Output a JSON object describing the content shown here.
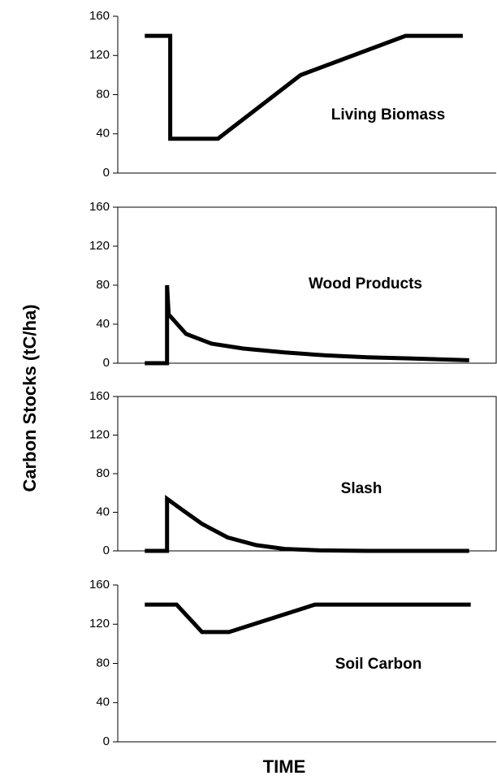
{
  "ylabel": "Carbon Stocks (tC/ha)",
  "xlabel": "TIME",
  "chart_data": [
    {
      "type": "line",
      "annotation": "Living Biomass",
      "color": "#000000",
      "box": false,
      "x": [
        0,
        0.8,
        0.8,
        2.3,
        4.9,
        8.2,
        10
      ],
      "values": [
        140,
        140,
        35,
        35,
        100,
        140,
        140
      ],
      "xlim": [
        -0.85,
        11.05
      ],
      "ylim": [
        0,
        160
      ],
      "yticks": [
        0,
        40,
        80,
        120,
        160
      ]
    },
    {
      "type": "line",
      "annotation": "Wood Products",
      "color": "#000000",
      "box": true,
      "x": [
        0,
        0.7,
        0.7,
        0.75,
        1.3,
        2.1,
        3.1,
        4.4,
        5.7,
        7,
        8.2,
        10.2
      ],
      "values": [
        0,
        0,
        80,
        50,
        30,
        20,
        15,
        11,
        8,
        6,
        5,
        3
      ],
      "xlim": [
        -0.85,
        11.05
      ],
      "ylim": [
        0,
        160
      ],
      "yticks": [
        0,
        40,
        80,
        120,
        160
      ]
    },
    {
      "type": "line",
      "annotation": "Slash",
      "color": "#000000",
      "box": true,
      "x": [
        0,
        0.7,
        0.7,
        1.2,
        1.8,
        2.6,
        3.5,
        4.4,
        5.5,
        7,
        10.2
      ],
      "values": [
        0,
        0,
        54,
        42,
        28,
        14,
        6,
        2,
        0.5,
        0,
        0
      ],
      "xlim": [
        -0.85,
        11.05
      ],
      "ylim": [
        0,
        160
      ],
      "yticks": [
        0,
        40,
        80,
        120,
        160
      ]
    },
    {
      "type": "line",
      "annotation": "Soil Carbon",
      "color": "#000000",
      "box": false,
      "x": [
        0,
        1.0,
        1.8,
        2.65,
        5.35,
        10.25
      ],
      "values": [
        140,
        140,
        112,
        112,
        140,
        140
      ],
      "xlim": [
        -0.85,
        11.05
      ],
      "ylim": [
        0,
        160
      ],
      "yticks": [
        0,
        40,
        80,
        120,
        160
      ]
    }
  ]
}
